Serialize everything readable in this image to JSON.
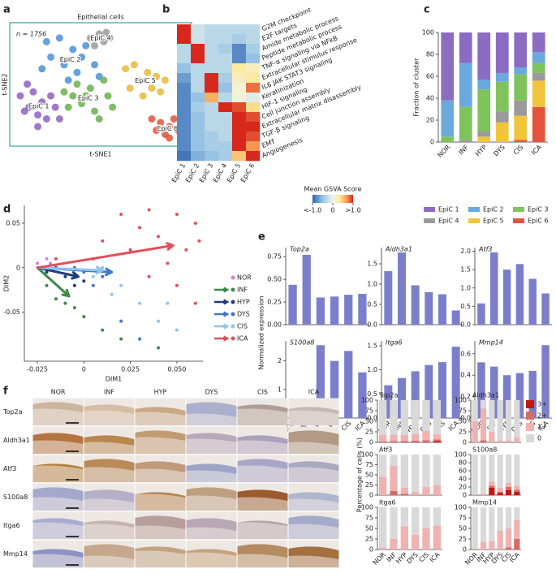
{
  "chart_data": [
    {
      "type": "scatter",
      "panel": "a",
      "title": "Epithelial cells",
      "annotation": "n = 1756",
      "xlabel": "t-SNE1",
      "ylabel": "t-SNE2",
      "series": [
        {
          "name": "EpiC 1",
          "color": "#8e62c0",
          "x": [
            -22.5,
            -20,
            -17.5,
            -15,
            -18.8,
            -12.5,
            -21.3,
            -16.3,
            -13.8,
            -17.5,
            -20.5,
            -11.3
          ],
          "y": [
            -3.8,
            -7.5,
            -10,
            -11.3,
            -2.5,
            -7.5,
            -8.8,
            -5.8,
            -3.8,
            -13.8,
            0,
            -11.3
          ]
        },
        {
          "name": "EpiC 2",
          "color": "#4a90d9",
          "x": [
            -15,
            -11.3,
            -7.5,
            -5,
            -1.3,
            -10,
            -13.8,
            -3.8,
            0,
            -6.3,
            -16.3,
            -8.8
          ],
          "y": [
            13.8,
            15,
            11.3,
            8.8,
            6.3,
            6.3,
            8.8,
            12.5,
            2.5,
            3.8,
            5,
            1.3
          ]
        },
        {
          "name": "EpiC 3",
          "color": "#6ab04c",
          "x": [
            -10,
            -6.3,
            -2.5,
            1.3,
            2.5,
            -5,
            -8.8,
            -1.3,
            -3.8,
            0,
            -7.5,
            3.8
          ],
          "y": [
            -2.5,
            0,
            -1.3,
            1.3,
            -3.8,
            -6.3,
            -7.5,
            -8.8,
            -3.8,
            -11.3,
            -3.8,
            -7.5
          ]
        },
        {
          "name": "EpiC 4",
          "color": "#9a9a9a",
          "x": [
            -2.5,
            0,
            2,
            -1.3,
            1.3,
            3
          ],
          "y": [
            15,
            16.3,
            16.8,
            12.5,
            13.8,
            15
          ]
        },
        {
          "name": "EpiC 5",
          "color": "#e8b93a",
          "x": [
            7.5,
            10,
            13.8,
            16.3,
            18.8,
            11.3,
            8.8,
            15,
            12.5,
            17.5
          ],
          "y": [
            5,
            6.3,
            3.8,
            2.5,
            1.3,
            1.3,
            -1.3,
            -1.3,
            -3.8,
            -2.5
          ]
        },
        {
          "name": "EpiC 6",
          "color": "#e0533a",
          "x": [
            15,
            17.5,
            20,
            22.5,
            18.8,
            16.3,
            21.3,
            23.8,
            20
          ],
          "y": [
            -11.3,
            -12.5,
            -13.8,
            -15,
            -16.3,
            -15,
            -11.3,
            -17.5,
            -17.5
          ]
        }
      ]
    },
    {
      "type": "heatmap",
      "panel": "b",
      "rows": [
        "G2M checkpoint",
        "E2F targets",
        "Amide metabolic process",
        "Peptide metabolic process",
        "TNF-α signaling via NFkB",
        "Extracellular stimulus response",
        "IL6 JAK STAT3 signaling",
        "Keratinization",
        "HIF-1 signaling",
        "Cell junction assembly",
        "Extracellular matrix disassembly",
        "TGF-β signaling",
        "EMT",
        "Angiogenesis"
      ],
      "columns": [
        "EpiC 1",
        "EpiC 2",
        "EpiC 3",
        "EpiC 4",
        "EpiC 5",
        "EpiC 6"
      ],
      "values": [
        [
          1,
          -0.2,
          -0.3,
          -0.3,
          -0.3,
          -0.3
        ],
        [
          1,
          -0.2,
          -0.3,
          -0.3,
          -0.4,
          -0.3
        ],
        [
          -0.3,
          1,
          -0.3,
          -0.4,
          -0.8,
          -0.4
        ],
        [
          -0.3,
          1,
          -0.3,
          -0.3,
          -0.8,
          -0.5
        ],
        [
          -0.5,
          -0.3,
          -0.3,
          -0.3,
          0.3,
          0.2
        ],
        [
          -0.7,
          -0.3,
          1,
          -0.4,
          0.2,
          0.3
        ],
        [
          -0.8,
          -0.3,
          1,
          -0.5,
          0.1,
          0.8
        ],
        [
          -0.8,
          -0.5,
          0.6,
          -0.3,
          0.1,
          -0.1
        ],
        [
          -0.8,
          -0.4,
          -0.3,
          1,
          0.9,
          0.4
        ],
        [
          -0.8,
          -0.5,
          -0.3,
          -0.3,
          1,
          0.9
        ],
        [
          -0.8,
          -0.5,
          -0.3,
          -0.3,
          1,
          1
        ],
        [
          -0.8,
          -0.5,
          -0.4,
          -0.3,
          1,
          0.9
        ],
        [
          -0.8,
          -0.5,
          -0.4,
          -0.4,
          1,
          0.7
        ],
        [
          -0.9,
          -0.6,
          -0.5,
          -0.4,
          0.5,
          1
        ]
      ],
      "zlim": [
        -1,
        1
      ],
      "colorbar_label": "Mean GSVA Score",
      "colorbar_ticks": [
        {
          "value": -1,
          "label": "<-1.0"
        },
        0,
        {
          "value": 1,
          "label": ">1.0"
        }
      ]
    },
    {
      "type": "stacked_bar",
      "panel": "c",
      "categories": [
        "NOR",
        "INF",
        "HYP",
        "DYS",
        "CIS",
        "ICA"
      ],
      "ylabel": "Fraction of cluster",
      "ylim": [
        0,
        100
      ],
      "yticks": [
        0,
        20,
        40,
        60,
        80,
        100
      ],
      "series": [
        {
          "name": "EpiC 1",
          "color": "#8c6bc2",
          "values": [
            62,
            28,
            43,
            37,
            32,
            18
          ]
        },
        {
          "name": "EpiC 2",
          "color": "#69a9de",
          "values": [
            33,
            40,
            9,
            8,
            6,
            10
          ]
        },
        {
          "name": "EpiC 3",
          "color": "#7ec35b",
          "values": [
            5,
            30,
            38,
            27,
            24,
            9
          ]
        },
        {
          "name": "EpiC 4",
          "color": "#9a9a9a",
          "values": [
            0,
            2,
            5,
            10,
            14,
            7
          ]
        },
        {
          "name": "EpiC 5",
          "color": "#f0c43c",
          "values": [
            0,
            0,
            5,
            18,
            22,
            24
          ]
        },
        {
          "name": "EpiC 6",
          "color": "#e4543c",
          "values": [
            0,
            0,
            0,
            0,
            2,
            32
          ]
        }
      ]
    },
    {
      "type": "scatter",
      "panel": "d",
      "xlabel": "DIM1",
      "ylabel": "DIM2",
      "xlim": [
        -0.032,
        0.064
      ],
      "ylim": [
        -0.105,
        0.07
      ],
      "xticks": [
        -0.025,
        0,
        0.025,
        {
          "value": 0.05,
          "label": "0.050"
        }
      ],
      "yticks": [
        -0.05,
        0,
        0.05
      ],
      "arrow_origin": [
        -0.025,
        0
      ],
      "series": [
        {
          "name": "NOR",
          "color": "#d77fe0",
          "x": [
            -0.025,
            -0.022,
            -0.02,
            -0.018
          ],
          "y": [
            0.005,
            0,
            0.01,
            0.005
          ]
        },
        {
          "name": "INF",
          "color": "#3a8a4a",
          "x": [
            -0.02,
            -0.015,
            -0.01,
            0,
            0.02,
            0.04,
            0.01,
            -0.005
          ],
          "y": [
            -0.02,
            -0.035,
            -0.04,
            -0.055,
            -0.08,
            -0.09,
            -0.07,
            -0.045
          ],
          "arrow": [
            -0.008,
            -0.032
          ]
        },
        {
          "name": "HYP",
          "color": "#1f3d7a",
          "x": [
            -0.02,
            -0.01,
            -0.015,
            0,
            -0.005
          ],
          "y": [
            -0.005,
            -0.01,
            0,
            -0.015,
            -0.02
          ],
          "arrow": [
            -0.003,
            -0.01
          ]
        },
        {
          "name": "DYS",
          "color": "#3f78c8",
          "x": [
            0,
            0.01,
            -0.005,
            0.03,
            0.02,
            0.005
          ],
          "y": [
            -0.005,
            -0.01,
            0,
            -0.08,
            -0.06,
            -0.02
          ],
          "arrow": [
            0.015,
            -0.005
          ]
        },
        {
          "name": "CIS",
          "color": "#8fc3ec",
          "x": [
            0.005,
            0.02,
            0.03,
            0.04,
            0.05,
            0.01,
            0.015,
            0.045
          ],
          "y": [
            -0.01,
            -0.02,
            -0.04,
            -0.06,
            -0.07,
            0,
            -0.03,
            -0.04
          ],
          "arrow": [
            0.01,
            -0.003
          ]
        },
        {
          "name": "ICA",
          "color": "#e0505a",
          "x": [
            0.02,
            0.035,
            0.05,
            0.06,
            0.062,
            0.055,
            0.04,
            0.03,
            0.045,
            0.05,
            0.06,
            0.025,
            0.01,
            0.005,
            -0.015,
            0.035
          ],
          "y": [
            0.06,
            0.065,
            0.06,
            0.05,
            0.03,
            0.02,
            0.035,
            0.045,
            0.005,
            -0.02,
            -0.04,
            0.02,
            0.03,
            0.01,
            0.01,
            -0.01
          ],
          "arrow": [
            0.048,
            0.025
          ]
        }
      ]
    },
    {
      "type": "bar",
      "panel": "e",
      "categories": [
        "NOR",
        "INF",
        "HYP",
        "DYS",
        "CIS",
        "ICA"
      ],
      "ylabel": "Normalized expression",
      "color": "#7b7fca",
      "panels": [
        {
          "title": "Top2a",
          "ylim": [
            0,
            0.85
          ],
          "yticks": [
            {
              "value": 0,
              "label": "0.00"
            },
            0.25,
            {
              "value": 0.5,
              "label": "0.50"
            },
            0.75
          ],
          "values": [
            0.44,
            0.77,
            0.3,
            0.31,
            0.33,
            0.34
          ]
        },
        {
          "title": "Aldh3a1",
          "ylim": [
            0,
            1.9
          ],
          "yticks": [
            {
              "value": 0,
              "label": "0.0"
            },
            0.5,
            {
              "value": 1,
              "label": "1.0"
            },
            1.5
          ],
          "values": [
            1.32,
            1.78,
            0.97,
            0.8,
            0.75,
            0.35
          ]
        },
        {
          "title": "Atf3",
          "ylim": [
            0,
            2.1
          ],
          "yticks": [
            {
              "value": 0,
              "label": "0.0"
            },
            0.5,
            {
              "value": 1,
              "label": "1.0"
            },
            1.5,
            {
              "value": 2,
              "label": "2.0"
            }
          ],
          "values": [
            0.58,
            1.97,
            1.5,
            1.65,
            1.25,
            0.85
          ]
        },
        {
          "title": "S100a8",
          "ylim": [
            0,
            2.7
          ],
          "yticks": [
            0,
            1,
            2
          ],
          "values": [
            0,
            0.18,
            2.55,
            2.0,
            2.35,
            1.6
          ]
        },
        {
          "title": "Itga6",
          "ylim": [
            0,
            1.6
          ],
          "yticks": [
            {
              "value": 0,
              "label": "0.0"
            },
            0.5,
            {
              "value": 1,
              "label": "1.0"
            },
            1.5
          ],
          "values": [
            0.68,
            0.83,
            0.97,
            1.1,
            1.16,
            1.48
          ]
        },
        {
          "title": "Mmp14",
          "ylim": [
            0,
            0.72
          ],
          "yticks": [
            {
              "value": 0,
              "label": "0.0"
            },
            0.2,
            0.4,
            0.6
          ],
          "values": [
            0.52,
            0.48,
            0.4,
            0.42,
            0.44,
            0.68
          ]
        }
      ]
    },
    {
      "type": "image_grid",
      "panel": "f",
      "columns": [
        "NOR",
        "INF",
        "HYP",
        "DYS",
        "CIS",
        "ICA"
      ],
      "rows": [
        "Top2a",
        "Aldh3a1",
        "Atf3",
        "S100a8",
        "Itga6",
        "Mmp14"
      ]
    },
    {
      "type": "stacked_bar",
      "categories": [
        "NOR",
        "INF",
        "HYP",
        "DYS",
        "CIS",
        "ICA"
      ],
      "ylabel": "Percentage of cells (%)",
      "series": [
        {
          "name": "3+",
          "color": "#c0190e"
        },
        {
          "name": "2+",
          "color": "#d66b65"
        },
        {
          "name": "1+",
          "color": "#efb2b0"
        },
        {
          "name": "0",
          "color": "#d9d9d9"
        }
      ],
      "panels": [
        {
          "title": "Top2a",
          "ylim": [
            0,
            100
          ],
          "yticks": [
            0,
            25,
            50,
            75,
            100
          ],
          "values": [
            [
              0,
              0,
              0,
              0,
              0,
              3
            ],
            [
              2,
              3,
              3,
              4,
              5,
              4
            ],
            [
              16,
              15,
              15,
              16,
              22,
              12
            ],
            [
              82,
              82,
              82,
              80,
              73,
              81
            ]
          ]
        },
        {
          "title": "Aldh3a1",
          "ylim": [
            0,
            100
          ],
          "yticks": [
            0,
            25,
            50,
            75,
            100
          ],
          "values": [
            [
              0,
              0,
              0,
              0,
              0,
              0
            ],
            [
              0,
              5,
              0,
              0,
              0,
              0
            ],
            [
              50,
              75,
              25,
              5,
              5,
              12
            ],
            [
              50,
              20,
              75,
              95,
              95,
              88
            ]
          ]
        },
        {
          "title": "Atf3",
          "ylim": [
            0,
            100
          ],
          "yticks": [
            0,
            25,
            50,
            75,
            100
          ],
          "values": [
            [
              0,
              0,
              0,
              0,
              0,
              0
            ],
            [
              0,
              10,
              3,
              0,
              0,
              0
            ],
            [
              45,
              62,
              15,
              8,
              20,
              25
            ],
            [
              55,
              28,
              82,
              92,
              80,
              75
            ]
          ]
        },
        {
          "title": "S100a8",
          "ylim": [
            0,
            100
          ],
          "yticks": [
            0,
            20,
            40,
            60,
            80,
            100
          ],
          "values": [
            [
              0,
              0,
              18,
              5,
              12,
              8
            ],
            [
              0,
              0,
              5,
              3,
              8,
              5
            ],
            [
              2,
              3,
              10,
              10,
              10,
              10
            ],
            [
              98,
              97,
              67,
              82,
              70,
              77
            ]
          ]
        },
        {
          "title": "Itga6",
          "ylim": [
            0,
            100
          ],
          "yticks": [
            0,
            25,
            50,
            75,
            100
          ],
          "values": [
            [
              0,
              0,
              0,
              0,
              0,
              0
            ],
            [
              0,
              0,
              0,
              0,
              0,
              0
            ],
            [
              5,
              25,
              55,
              35,
              50,
              57
            ],
            [
              95,
              75,
              45,
              65,
              50,
              43
            ]
          ]
        },
        {
          "title": "Mmp14",
          "ylim": [
            0,
            100
          ],
          "yticks": [
            0,
            25,
            50,
            75,
            100
          ],
          "values": [
            [
              0,
              0,
              0,
              0,
              0,
              0
            ],
            [
              0,
              0,
              0,
              0,
              5,
              25
            ],
            [
              2,
              18,
              20,
              45,
              45,
              45
            ],
            [
              98,
              82,
              80,
              55,
              50,
              30
            ]
          ]
        }
      ]
    }
  ]
}
